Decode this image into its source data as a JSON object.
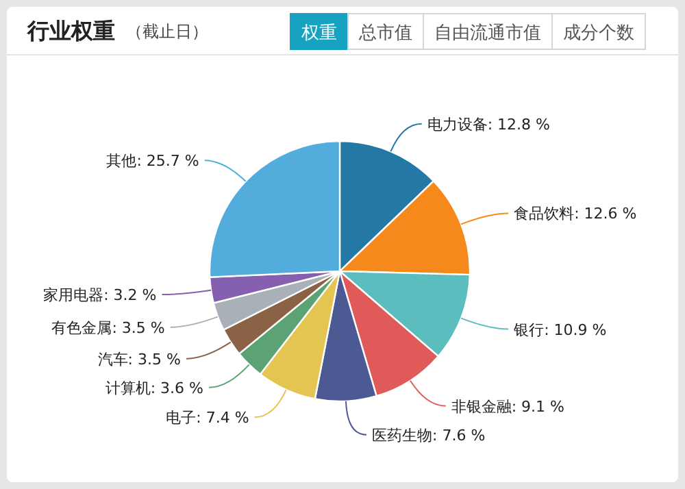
{
  "chart_data": {
    "type": "pie",
    "title": "行业权重",
    "subtitle": "（截止日）",
    "annotations": [
      "权重",
      "总市值",
      "自由流通市值",
      "成分个数"
    ],
    "categories": [
      "电力设备",
      "食品饮料",
      "银行",
      "非银金融",
      "医药生物",
      "电子",
      "计算机",
      "汽车",
      "有色金属",
      "家用电器",
      "其他"
    ],
    "values": [
      12.8,
      12.6,
      10.9,
      9.1,
      7.6,
      7.4,
      3.6,
      3.5,
      3.5,
      3.2,
      25.7
    ],
    "value_labels": [
      "12.8 %",
      "12.6 %",
      "10.9 %",
      "9.1 %",
      "7.6 %",
      "7.4 %",
      "3.6 %",
      "3.5 %",
      "3.5 %",
      "3.2 %",
      "25.7 %"
    ],
    "colors": [
      "#2378a6",
      "#f5891c",
      "#5bbdbd",
      "#e05a5a",
      "#4b5a92",
      "#e4c552",
      "#5ba374",
      "#8b6246",
      "#a9b0b8",
      "#8560b0",
      "#52acdc"
    ]
  }
}
